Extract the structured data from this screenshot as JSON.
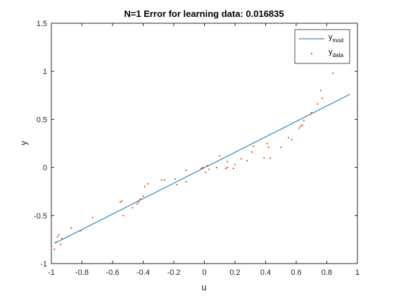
{
  "chart_data": {
    "type": "line",
    "title": "N=1 Error for learning data: 0.016835",
    "xlabel": "u",
    "ylabel": "y",
    "xlim": [
      -1,
      1
    ],
    "ylim": [
      -1,
      1.5
    ],
    "xticks": [
      -1,
      -0.8,
      -0.6,
      -0.4,
      -0.2,
      0,
      0.2,
      0.4,
      0.6,
      0.8,
      1
    ],
    "xtick_labels": [
      "-1",
      "-0.8",
      "-0.6",
      "-0.4",
      "-0.2",
      "0",
      "0.2",
      "0.4",
      "0.6",
      "0.8",
      "1"
    ],
    "yticks": [
      -1,
      -0.5,
      0,
      0.5,
      1,
      1.5
    ],
    "ytick_labels": [
      "-1",
      "-0.5",
      "0",
      "0.5",
      "1",
      "1.5"
    ],
    "grid": false,
    "legend": "top-right",
    "series": [
      {
        "name": "y_mod",
        "label_main": "y",
        "label_sub": "mod",
        "kind": "line",
        "color": "#0072BD",
        "x": [
          -0.98,
          0.95
        ],
        "y": [
          -0.79,
          0.76
        ]
      },
      {
        "name": "y_data",
        "label_main": "y",
        "label_sub": "data",
        "kind": "scatter",
        "color": "#D95319",
        "x": [
          -0.98,
          -0.97,
          -0.96,
          -0.95,
          -0.94,
          -0.93,
          -0.87,
          -0.81,
          -0.73,
          -0.55,
          -0.54,
          -0.53,
          -0.47,
          -0.44,
          -0.43,
          -0.42,
          -0.4,
          -0.39,
          -0.37,
          -0.28,
          -0.26,
          -0.19,
          -0.18,
          -0.12,
          -0.12,
          -0.02,
          -0.01,
          0.01,
          0.02,
          0.03,
          0.08,
          0.1,
          0.14,
          0.15,
          0.15,
          0.19,
          0.2,
          0.24,
          0.28,
          0.31,
          0.32,
          0.39,
          0.41,
          0.42,
          0.43,
          0.5,
          0.55,
          0.57,
          0.62,
          0.63,
          0.64,
          0.65,
          0.69,
          0.7,
          0.74,
          0.76,
          0.77,
          0.84
        ],
        "y": [
          -0.85,
          -0.78,
          -0.72,
          -0.7,
          -0.8,
          -0.74,
          -0.63,
          -0.66,
          -0.52,
          -0.36,
          -0.35,
          -0.5,
          -0.42,
          -0.38,
          -0.36,
          -0.33,
          -0.3,
          -0.2,
          -0.17,
          -0.13,
          -0.13,
          -0.12,
          -0.18,
          -0.15,
          -0.03,
          -0.01,
          0.0,
          -0.05,
          0.02,
          -0.02,
          0.0,
          0.12,
          -0.01,
          0.06,
          0.0,
          -0.01,
          0.03,
          0.09,
          0.07,
          0.16,
          0.22,
          0.1,
          0.25,
          0.21,
          0.1,
          0.21,
          0.31,
          0.29,
          0.41,
          0.43,
          0.44,
          0.49,
          0.55,
          0.57,
          0.66,
          0.8,
          0.72,
          0.98
        ]
      }
    ]
  }
}
